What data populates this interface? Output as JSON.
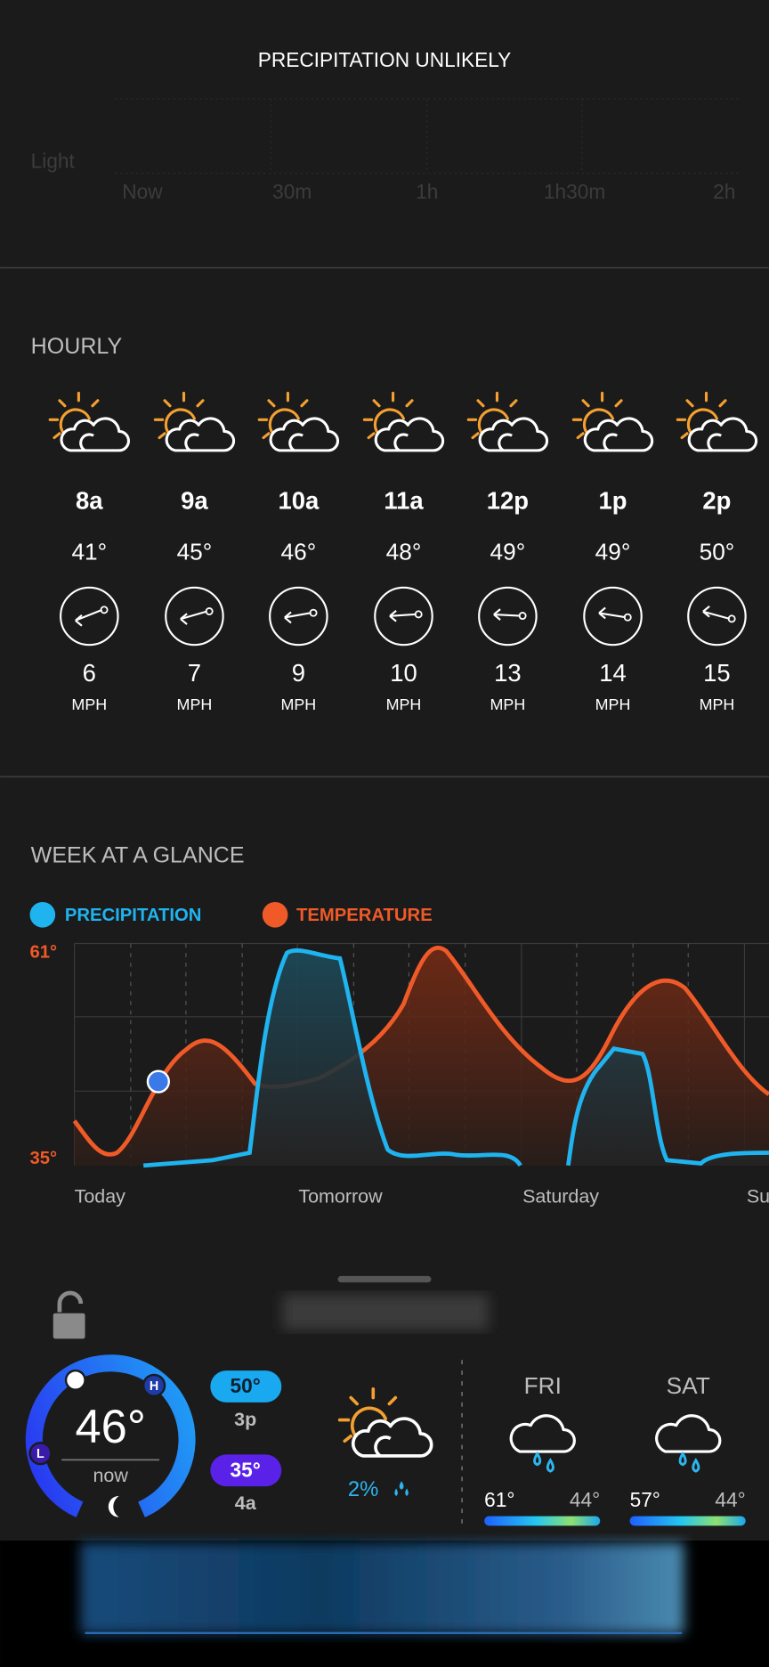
{
  "precipitation": {
    "title": "PRECIPITATION UNLIKELY",
    "y_label": "Light",
    "x_labels": [
      "Now",
      "30m",
      "1h",
      "1h30m",
      "2h"
    ]
  },
  "hourly": {
    "title": "HOURLY",
    "items": [
      {
        "time": "8a",
        "temp": "41°",
        "wind": "6",
        "unit": "MPH"
      },
      {
        "time": "9a",
        "temp": "45°",
        "wind": "7",
        "unit": "MPH"
      },
      {
        "time": "10a",
        "temp": "46°",
        "wind": "9",
        "unit": "MPH"
      },
      {
        "time": "11a",
        "temp": "48°",
        "wind": "10",
        "unit": "MPH"
      },
      {
        "time": "12p",
        "temp": "49°",
        "wind": "13",
        "unit": "MPH"
      },
      {
        "time": "1p",
        "temp": "49°",
        "wind": "14",
        "unit": "MPH"
      },
      {
        "time": "2p",
        "temp": "50°",
        "wind": "15",
        "unit": "MPH"
      }
    ]
  },
  "week": {
    "title": "WEEK AT A GLANCE",
    "legend": [
      "PRECIPITATION",
      "TEMPERATURE"
    ],
    "y_top": "61°",
    "y_bottom": "35°",
    "days": [
      "Today",
      "Tomorrow",
      "Saturday",
      "Su"
    ]
  },
  "widget": {
    "current": "46°",
    "now": "now",
    "h": "H",
    "l": "L",
    "high": "50°",
    "high_time": "3p",
    "low": "35°",
    "low_time": "4a",
    "precip": "2%",
    "forecast": [
      {
        "day": "FRI",
        "high": "61°",
        "low": "44°"
      },
      {
        "day": "SAT",
        "high": "57°",
        "low": "44°"
      }
    ]
  }
}
